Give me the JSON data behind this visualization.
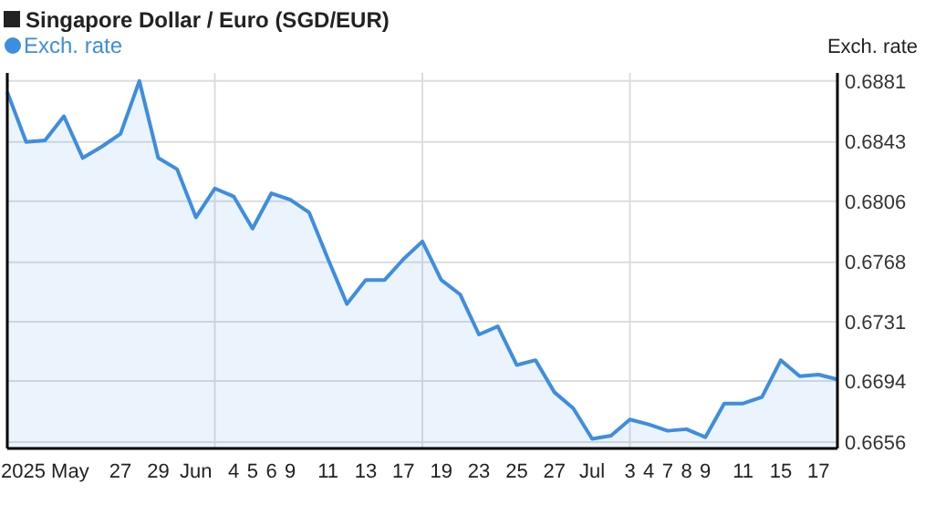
{
  "chart_data": {
    "type": "area",
    "title": "Singapore Dollar / Euro (SGD/EUR)",
    "ylabel": "Exch. rate",
    "categories": [
      null,
      null,
      "2025 May",
      null,
      null,
      null,
      "27",
      null,
      "29",
      null,
      "Jun",
      null,
      "4",
      "5",
      "6",
      "9",
      null,
      "11",
      null,
      "13",
      null,
      "17",
      null,
      "19",
      null,
      "23",
      null,
      "25",
      null,
      "27",
      null,
      "Jul",
      null,
      "3",
      "4",
      "7",
      "8",
      "9",
      null,
      "11",
      null,
      "15",
      null,
      "17",
      null
    ],
    "series": [
      {
        "name": "Exch. rate",
        "color": "#3d8ee0",
        "values": [
          0.6874,
          0.6843,
          0.6844,
          0.6859,
          0.6833,
          0.684,
          0.6848,
          0.6881,
          0.6833,
          0.6826,
          0.6796,
          0.6814,
          0.6809,
          0.6789,
          0.6811,
          0.6807,
          0.6799,
          0.677,
          0.6742,
          0.6757,
          0.6757,
          0.677,
          0.6781,
          0.6757,
          0.6748,
          0.6723,
          0.6728,
          0.6704,
          0.6707,
          0.6687,
          0.6677,
          0.6658,
          0.666,
          0.667,
          0.6667,
          0.6663,
          0.6664,
          0.6659,
          0.668,
          0.668,
          0.6684,
          0.6707,
          0.6697,
          0.6698,
          0.6695
        ]
      }
    ],
    "ylim": [
      0.6652,
      0.6886
    ],
    "yticks": [
      0.6656,
      0.6694,
      0.6731,
      0.6768,
      0.6806,
      0.6843,
      0.6881
    ],
    "grid": true,
    "legend": "top left",
    "marker": "none"
  }
}
